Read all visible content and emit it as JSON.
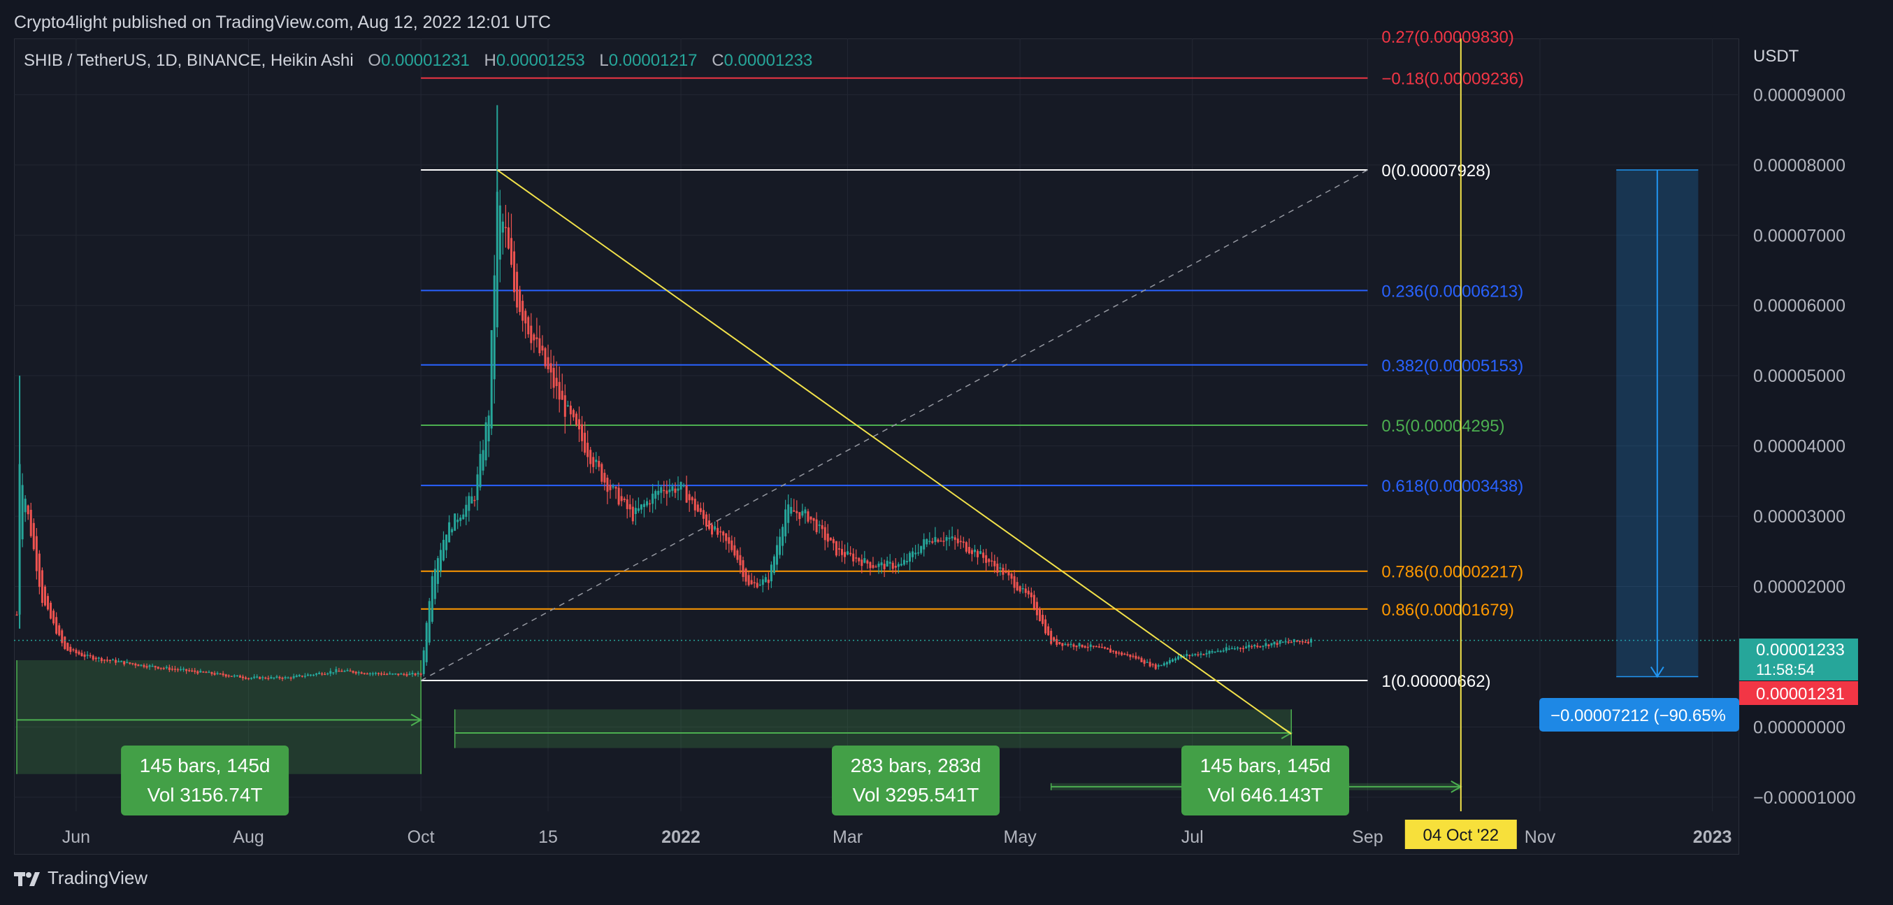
{
  "header": {
    "published": "Crypto4light published on TradingView.com, Aug 12, 2022 12:01 UTC"
  },
  "legend": {
    "symbol": "SHIB / TetherUS, 1D, BINANCE, Heikin Ashi",
    "o_label": "O",
    "o": "0.00001231",
    "h_label": "H",
    "h": "0.00001253",
    "l_label": "L",
    "l": "0.00001217",
    "c_label": "C",
    "c": "0.00001233"
  },
  "footer": {
    "brand": "TradingView"
  },
  "colors": {
    "background": "#131722",
    "up": "#26a69a",
    "down": "#ef5350",
    "trendline": "#f2e24a",
    "fib_white": "#ffffff",
    "fib_red": "#f23645",
    "fib_blue": "#2962ff",
    "fib_green": "#4caf50",
    "fib_orange": "#ff9800",
    "range_green": "#4caf50",
    "measure_blue": "#2196f3",
    "price_label_green": "#26a69a",
    "price_label_red": "#f23645"
  },
  "chart_data": {
    "type": "candlestick",
    "y_axis_unit": "USDT",
    "ylim": [
      -1.2e-05,
      9.8e-05
    ],
    "y_ticks": [
      "0.00009000",
      "0.00008000",
      "0.00007000",
      "0.00006000",
      "0.00005000",
      "0.00004000",
      "0.00003000",
      "0.00002000",
      "0.00000000",
      "−0.00001000"
    ],
    "x_ticks": [
      "Jun",
      "Aug",
      "Oct",
      "15",
      "2022",
      "Mar",
      "May",
      "Jul",
      "Sep",
      "Nov",
      "2023"
    ],
    "x_tick_dates": [
      "2021-06-01",
      "2021-08-01",
      "2021-10-01",
      "2021-11-15",
      "2022-01-01",
      "2022-03-01",
      "2022-05-01",
      "2022-07-01",
      "2022-09-01",
      "2022-11-01",
      "2023-01-01"
    ],
    "xlim_dates": [
      "2021-05-10",
      "2023-01-10"
    ],
    "price_points": [
      {
        "date": "2021-05-11",
        "price": 1.6e-05
      },
      {
        "date": "2021-05-12",
        "price": 3.8e-05
      },
      {
        "date": "2021-05-15",
        "price": 3e-05
      },
      {
        "date": "2021-05-20",
        "price": 1.8e-05
      },
      {
        "date": "2021-05-28",
        "price": 1.1e-05
      },
      {
        "date": "2021-06-05",
        "price": 1e-05
      },
      {
        "date": "2021-06-20",
        "price": 9e-06
      },
      {
        "date": "2021-07-10",
        "price": 8e-06
      },
      {
        "date": "2021-08-01",
        "price": 7e-06
      },
      {
        "date": "2021-08-15",
        "price": 7e-06
      },
      {
        "date": "2021-09-01",
        "price": 8e-06
      },
      {
        "date": "2021-09-20",
        "price": 7.5e-06
      },
      {
        "date": "2021-10-01",
        "price": 7.5e-06
      },
      {
        "date": "2021-10-05",
        "price": 2.2e-05
      },
      {
        "date": "2021-10-10",
        "price": 2.8e-05
      },
      {
        "date": "2021-10-20",
        "price": 3.3e-05
      },
      {
        "date": "2021-10-25",
        "price": 4.5e-05
      },
      {
        "date": "2021-10-28",
        "price": 7.5e-05
      },
      {
        "date": "2021-10-31",
        "price": 7e-05
      },
      {
        "date": "2021-11-03",
        "price": 6.2e-05
      },
      {
        "date": "2021-11-10",
        "price": 5.5e-05
      },
      {
        "date": "2021-11-20",
        "price": 4.6e-05
      },
      {
        "date": "2021-11-28",
        "price": 4e-05
      },
      {
        "date": "2021-12-05",
        "price": 3.5e-05
      },
      {
        "date": "2021-12-15",
        "price": 3e-05
      },
      {
        "date": "2021-12-25",
        "price": 3.4e-05
      },
      {
        "date": "2022-01-01",
        "price": 3.4e-05
      },
      {
        "date": "2022-01-10",
        "price": 2.9e-05
      },
      {
        "date": "2022-01-20",
        "price": 2.5e-05
      },
      {
        "date": "2022-01-25",
        "price": 2e-05
      },
      {
        "date": "2022-02-01",
        "price": 2.1e-05
      },
      {
        "date": "2022-02-07",
        "price": 3.1e-05
      },
      {
        "date": "2022-02-15",
        "price": 3e-05
      },
      {
        "date": "2022-02-25",
        "price": 2.5e-05
      },
      {
        "date": "2022-03-10",
        "price": 2.3e-05
      },
      {
        "date": "2022-03-20",
        "price": 2.3e-05
      },
      {
        "date": "2022-03-30",
        "price": 2.7e-05
      },
      {
        "date": "2022-04-05",
        "price": 2.7e-05
      },
      {
        "date": "2022-04-15",
        "price": 2.5e-05
      },
      {
        "date": "2022-04-25",
        "price": 2.2e-05
      },
      {
        "date": "2022-05-05",
        "price": 1.8e-05
      },
      {
        "date": "2022-05-12",
        "price": 1.2e-05
      },
      {
        "date": "2022-05-25",
        "price": 1.15e-05
      },
      {
        "date": "2022-06-10",
        "price": 1e-05
      },
      {
        "date": "2022-06-18",
        "price": 8.5e-06
      },
      {
        "date": "2022-06-25",
        "price": 1e-05
      },
      {
        "date": "2022-07-05",
        "price": 1.05e-05
      },
      {
        "date": "2022-07-20",
        "price": 1.15e-05
      },
      {
        "date": "2022-08-01",
        "price": 1.2e-05
      },
      {
        "date": "2022-08-12",
        "price": 1.23e-05
      }
    ],
    "fib_levels": [
      {
        "label": "0.27(0.00009830)",
        "price": 9.83e-05,
        "color": "#f23645",
        "partial": true
      },
      {
        "label": "−0.18(0.00009236)",
        "price": 9.236e-05,
        "color": "#f23645"
      },
      {
        "label": "0(0.00007928)",
        "price": 7.928e-05,
        "color": "#ffffff"
      },
      {
        "label": "0.236(0.00006213)",
        "price": 6.213e-05,
        "color": "#2962ff"
      },
      {
        "label": "0.382(0.00005153)",
        "price": 5.153e-05,
        "color": "#2962ff"
      },
      {
        "label": "0.5(0.00004295)",
        "price": 4.295e-05,
        "color": "#4caf50"
      },
      {
        "label": "0.618(0.00003438)",
        "price": 3.438e-05,
        "color": "#2962ff"
      },
      {
        "label": "0.786(0.00002217)",
        "price": 2.217e-05,
        "color": "#ff9800"
      },
      {
        "label": "0.86(0.00001679)",
        "price": 1.679e-05,
        "color": "#ff9800"
      },
      {
        "label": "1(0.00000662)",
        "price": 6.62e-06,
        "color": "#ffffff"
      }
    ],
    "fib_start_date": "2021-10-01",
    "fib_end_date": "2022-09-01",
    "trendline": {
      "start_date": "2021-10-28",
      "start_price": 7.928e-05,
      "end_date": "2022-08-05",
      "end_price": -1e-06
    },
    "diagonal_dashed": {
      "start_date": "2021-10-01",
      "start_price": 6.62e-06,
      "end_date": "2022-09-01",
      "end_price": 7.928e-05
    },
    "date_ranges": [
      {
        "bars": "145 bars, 145d",
        "vol": "Vol 3156.74T",
        "start": "2021-05-11",
        "end": "2021-10-01",
        "top": 9.5e-06,
        "bottom": -6.7e-06
      },
      {
        "bars": "283 bars, 283d",
        "vol": "Vol 3295.541T",
        "start": "2021-10-13",
        "end": "2022-08-05",
        "top": 2.5e-06,
        "bottom": -3e-06
      },
      {
        "bars": "145 bars, 145d",
        "vol": "Vol 646.143T",
        "start": "2022-05-12",
        "end": "2022-10-04",
        "top": -8e-06,
        "bottom": -9e-06
      }
    ],
    "vertical_line": {
      "date": "2022-10-04",
      "label": "04 Oct '22"
    },
    "measure": {
      "start_date": "2022-11-28",
      "end_date": "2022-12-27",
      "top": 7.928e-05,
      "bottom": 7.16e-06,
      "label": "−0.00007212 (−90.65%"
    },
    "current_price": {
      "value": "0.00001233",
      "countdown": "11:58:54",
      "price": 1.233e-05
    },
    "open_price": {
      "value": "0.00001231",
      "price": 1.231e-05
    }
  }
}
